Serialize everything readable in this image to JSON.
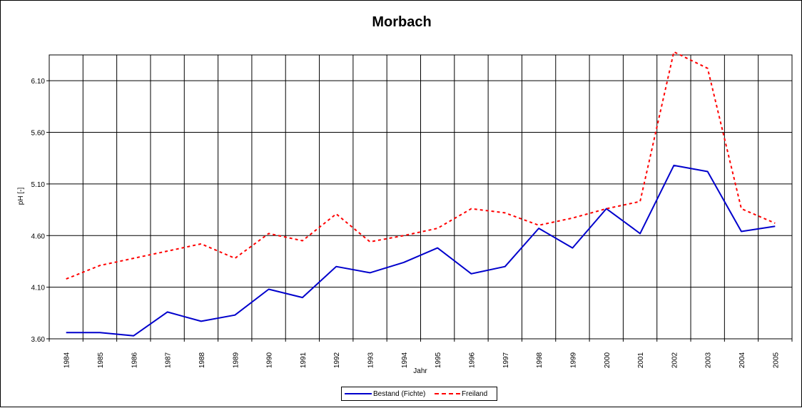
{
  "chart_data": {
    "type": "line",
    "title": "Morbach",
    "xlabel": "Jahr",
    "ylabel": "pH [-]",
    "categories": [
      "1984",
      "1985",
      "1986",
      "1987",
      "1988",
      "1989",
      "1990",
      "1991",
      "1992",
      "1993",
      "1994",
      "1995",
      "1996",
      "1997",
      "1998",
      "1999",
      "2000",
      "2001",
      "2002",
      "2003",
      "2004",
      "2005"
    ],
    "y_ticks": [
      "3.60",
      "4.10",
      "4.60",
      "5.10",
      "5.60",
      "6.10"
    ],
    "ylim": [
      3.6,
      6.35
    ],
    "grid": true,
    "legend_position": "bottom",
    "series": [
      {
        "name": "Bestand (Fichte)",
        "color": "#0000cc",
        "style": "solid",
        "values": [
          3.66,
          3.66,
          3.63,
          3.86,
          3.77,
          3.83,
          4.08,
          4.0,
          4.3,
          4.24,
          4.34,
          4.48,
          4.23,
          4.3,
          4.67,
          4.48,
          4.86,
          4.62,
          5.28,
          5.22,
          4.64,
          4.69
        ]
      },
      {
        "name": "Freiland",
        "color": "#ff0000",
        "style": "dashed",
        "values": [
          4.18,
          4.31,
          4.38,
          4.45,
          4.52,
          4.38,
          4.62,
          4.55,
          4.81,
          4.54,
          4.6,
          4.67,
          4.86,
          4.82,
          4.7,
          4.77,
          4.86,
          4.93,
          6.38,
          6.22,
          4.86,
          4.72
        ]
      }
    ]
  }
}
